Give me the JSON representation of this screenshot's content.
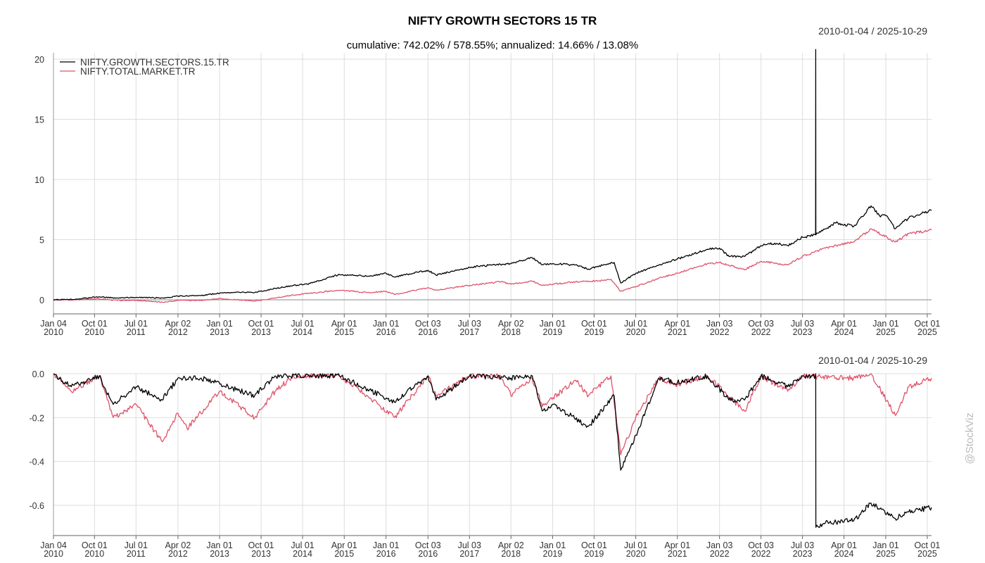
{
  "chart_data": [
    {
      "type": "line",
      "title": "NIFTY GROWTH SECTORS 15 TR",
      "subtitle": "cumulative: 742.02% / 578.55%; annualized: 14.66% / 13.08%",
      "date_range": "2010-01-04 / 2025-10-29",
      "ylim": [
        -0.5,
        21
      ],
      "yticks": [
        "0",
        "5",
        "10",
        "15",
        "20"
      ],
      "grid": true,
      "legend_position": "top-left",
      "x_ticks": [
        {
          "date": "2010-01-04",
          "label": "Jan 04\n2010"
        },
        {
          "date": "2010-10-01",
          "label": "Oct 01\n2010"
        },
        {
          "date": "2011-07-01",
          "label": "Jul 01\n2011"
        },
        {
          "date": "2012-04-02",
          "label": "Apr 02\n2012"
        },
        {
          "date": "2013-01-01",
          "label": "Jan 01\n2013"
        },
        {
          "date": "2013-10-01",
          "label": "Oct 01\n2013"
        },
        {
          "date": "2014-07-01",
          "label": "Jul 01\n2014"
        },
        {
          "date": "2015-04-01",
          "label": "Apr 01\n2015"
        },
        {
          "date": "2016-01-01",
          "label": "Jan 01\n2016"
        },
        {
          "date": "2016-10-03",
          "label": "Oct 03\n2016"
        },
        {
          "date": "2017-07-03",
          "label": "Jul 03\n2017"
        },
        {
          "date": "2018-04-02",
          "label": "Apr 02\n2018"
        },
        {
          "date": "2019-01-01",
          "label": "Jan 01\n2019"
        },
        {
          "date": "2019-10-01",
          "label": "Oct 01\n2019"
        },
        {
          "date": "2020-07-01",
          "label": "Jul 01\n2020"
        },
        {
          "date": "2021-04-01",
          "label": "Apr 01\n2021"
        },
        {
          "date": "2022-01-03",
          "label": "Jan 03\n2022"
        },
        {
          "date": "2022-10-03",
          "label": "Oct 03\n2022"
        },
        {
          "date": "2023-07-03",
          "label": "Jul 03\n2023"
        },
        {
          "date": "2024-04-01",
          "label": "Apr 01\n2024"
        },
        {
          "date": "2025-01-01",
          "label": "Jan 01\n2025"
        },
        {
          "date": "2025-10-01",
          "label": "Oct 01\n2025"
        }
      ],
      "series": [
        {
          "name": "NIFTY.GROWTH.SECTORS.15.TR",
          "color": "#000000",
          "points": [
            [
              "2010-01-04",
              0
            ],
            [
              "2010-06-01",
              0.05
            ],
            [
              "2010-10-15",
              0.25
            ],
            [
              "2011-03-01",
              0.15
            ],
            [
              "2011-07-01",
              0.2
            ],
            [
              "2011-12-20",
              0.15
            ],
            [
              "2012-04-02",
              0.3
            ],
            [
              "2012-09-01",
              0.35
            ],
            [
              "2013-01-01",
              0.55
            ],
            [
              "2013-05-01",
              0.65
            ],
            [
              "2013-08-20",
              0.6
            ],
            [
              "2014-01-01",
              0.95
            ],
            [
              "2014-05-01",
              1.2
            ],
            [
              "2014-08-01",
              1.3
            ],
            [
              "2015-01-01",
              1.9
            ],
            [
              "2015-03-01",
              2.1
            ],
            [
              "2015-09-01",
              1.95
            ],
            [
              "2016-01-01",
              2.2
            ],
            [
              "2016-02-25",
              1.9
            ],
            [
              "2016-08-01",
              2.3
            ],
            [
              "2016-10-03",
              2.45
            ],
            [
              "2016-11-25",
              2.05
            ],
            [
              "2017-03-01",
              2.35
            ],
            [
              "2017-07-03",
              2.7
            ],
            [
              "2017-12-01",
              2.9
            ],
            [
              "2018-04-02",
              3.0
            ],
            [
              "2018-08-20",
              3.5
            ],
            [
              "2018-10-25",
              2.9
            ],
            [
              "2019-01-01",
              3.0
            ],
            [
              "2019-06-01",
              2.9
            ],
            [
              "2019-08-25",
              2.55
            ],
            [
              "2019-12-01",
              2.9
            ],
            [
              "2020-02-10",
              3.1
            ],
            [
              "2020-03-24",
              1.4
            ],
            [
              "2020-07-01",
              2.2
            ],
            [
              "2020-12-01",
              2.9
            ],
            [
              "2021-04-01",
              3.4
            ],
            [
              "2021-10-15",
              4.2
            ],
            [
              "2022-01-03",
              4.3
            ],
            [
              "2022-03-07",
              3.6
            ],
            [
              "2022-06-17",
              3.6
            ],
            [
              "2022-10-03",
              4.5
            ],
            [
              "2023-01-01",
              4.7
            ],
            [
              "2023-03-28",
              4.5
            ],
            [
              "2023-07-03",
              5.2
            ],
            [
              "2023-09-27",
              5.4
            ],
            [
              "2023-09-28",
              20.8
            ],
            [
              "2023-09-29",
              5.4
            ],
            [
              "2023-12-01",
              5.9
            ],
            [
              "2024-02-01",
              6.4
            ],
            [
              "2024-06-04",
              6.1
            ],
            [
              "2024-09-26",
              7.8
            ],
            [
              "2024-11-20",
              7.0
            ],
            [
              "2025-01-01",
              7.0
            ],
            [
              "2025-03-04",
              5.9
            ],
            [
              "2025-06-01",
              6.8
            ],
            [
              "2025-10-29",
              7.42
            ]
          ]
        },
        {
          "name": "NIFTY.TOTAL.MARKET.TR",
          "color": "#DF536B",
          "points": [
            [
              "2010-01-04",
              0
            ],
            [
              "2010-06-01",
              0.0
            ],
            [
              "2010-10-15",
              0.1
            ],
            [
              "2011-03-01",
              -0.05
            ],
            [
              "2011-07-01",
              -0.05
            ],
            [
              "2011-12-20",
              -0.2
            ],
            [
              "2012-04-02",
              -0.05
            ],
            [
              "2012-09-01",
              -0.05
            ],
            [
              "2013-01-01",
              0.1
            ],
            [
              "2013-08-20",
              -0.1
            ],
            [
              "2014-01-01",
              0.15
            ],
            [
              "2014-05-01",
              0.4
            ],
            [
              "2015-03-01",
              0.8
            ],
            [
              "2015-09-01",
              0.6
            ],
            [
              "2016-01-01",
              0.7
            ],
            [
              "2016-02-25",
              0.45
            ],
            [
              "2016-10-03",
              1.0
            ],
            [
              "2016-11-25",
              0.8
            ],
            [
              "2017-07-03",
              1.2
            ],
            [
              "2018-01-25",
              1.5
            ],
            [
              "2018-04-02",
              1.3
            ],
            [
              "2018-08-20",
              1.55
            ],
            [
              "2018-10-25",
              1.2
            ],
            [
              "2019-06-01",
              1.5
            ],
            [
              "2019-12-01",
              1.6
            ],
            [
              "2020-01-20",
              1.7
            ],
            [
              "2020-03-24",
              0.7
            ],
            [
              "2020-07-01",
              1.1
            ],
            [
              "2020-12-01",
              1.8
            ],
            [
              "2021-04-01",
              2.2
            ],
            [
              "2021-10-15",
              3.0
            ],
            [
              "2022-01-03",
              3.1
            ],
            [
              "2022-06-17",
              2.5
            ],
            [
              "2022-10-03",
              3.2
            ],
            [
              "2023-03-28",
              2.9
            ],
            [
              "2023-07-03",
              3.6
            ],
            [
              "2023-12-01",
              4.3
            ],
            [
              "2024-06-04",
              4.8
            ],
            [
              "2024-09-26",
              5.9
            ],
            [
              "2025-03-04",
              4.8
            ],
            [
              "2025-06-01",
              5.5
            ],
            [
              "2025-10-29",
              5.79
            ]
          ]
        }
      ]
    },
    {
      "type": "line",
      "date_range": "2010-01-04 / 2025-10-29",
      "ylim": [
        -0.72,
        0.01
      ],
      "yticks": [
        "0.0",
        "-0.2",
        "-0.4",
        "-0.6"
      ],
      "grid": true,
      "series": [
        {
          "name": "NIFTY.GROWTH.SECTORS.15.TR",
          "color": "#000000",
          "points": [
            [
              "2010-01-04",
              0
            ],
            [
              "2010-05-01",
              -0.06
            ],
            [
              "2010-11-01",
              -0.01
            ],
            [
              "2011-02-01",
              -0.14
            ],
            [
              "2011-07-01",
              -0.06
            ],
            [
              "2011-12-20",
              -0.12
            ],
            [
              "2012-04-02",
              -0.02
            ],
            [
              "2012-09-01",
              -0.02
            ],
            [
              "2013-08-20",
              -0.1
            ],
            [
              "2014-01-01",
              -0.01
            ],
            [
              "2015-03-01",
              -0.01
            ],
            [
              "2015-09-01",
              -0.07
            ],
            [
              "2016-02-25",
              -0.13
            ],
            [
              "2016-10-03",
              -0.01
            ],
            [
              "2016-11-25",
              -0.12
            ],
            [
              "2017-07-03",
              -0.01
            ],
            [
              "2018-04-02",
              -0.02
            ],
            [
              "2018-08-20",
              -0.01
            ],
            [
              "2018-10-25",
              -0.17
            ],
            [
              "2019-01-01",
              -0.14
            ],
            [
              "2019-08-25",
              -0.24
            ],
            [
              "2020-02-10",
              -0.1
            ],
            [
              "2020-03-24",
              -0.44
            ],
            [
              "2020-07-01",
              -0.28
            ],
            [
              "2020-12-01",
              -0.02
            ],
            [
              "2021-04-01",
              -0.04
            ],
            [
              "2021-10-15",
              -0.01
            ],
            [
              "2022-03-07",
              -0.12
            ],
            [
              "2022-06-17",
              -0.12
            ],
            [
              "2022-10-03",
              -0.01
            ],
            [
              "2023-03-28",
              -0.06
            ],
            [
              "2023-07-03",
              -0.01
            ],
            [
              "2023-09-27",
              -0.01
            ],
            [
              "2023-09-28",
              0
            ],
            [
              "2023-09-29",
              -0.7
            ],
            [
              "2023-12-01",
              -0.68
            ],
            [
              "2024-06-04",
              -0.67
            ],
            [
              "2024-09-26",
              -0.59
            ],
            [
              "2025-03-04",
              -0.66
            ],
            [
              "2025-06-01",
              -0.63
            ],
            [
              "2025-10-29",
              -0.61
            ]
          ]
        },
        {
          "name": "NIFTY.TOTAL.MARKET.TR",
          "color": "#DF536B",
          "points": [
            [
              "2010-01-04",
              0
            ],
            [
              "2010-05-01",
              -0.08
            ],
            [
              "2010-11-01",
              -0.01
            ],
            [
              "2011-02-01",
              -0.2
            ],
            [
              "2011-07-01",
              -0.14
            ],
            [
              "2011-12-20",
              -0.31
            ],
            [
              "2012-04-02",
              -0.18
            ],
            [
              "2012-06-01",
              -0.25
            ],
            [
              "2013-01-01",
              -0.08
            ],
            [
              "2013-08-20",
              -0.2
            ],
            [
              "2014-01-01",
              -0.08
            ],
            [
              "2014-05-01",
              -0.01
            ],
            [
              "2015-03-01",
              -0.01
            ],
            [
              "2015-09-01",
              -0.1
            ],
            [
              "2016-02-25",
              -0.2
            ],
            [
              "2016-10-03",
              -0.01
            ],
            [
              "2016-11-25",
              -0.1
            ],
            [
              "2017-07-03",
              -0.01
            ],
            [
              "2018-01-25",
              -0.01
            ],
            [
              "2018-04-02",
              -0.1
            ],
            [
              "2018-08-20",
              -0.02
            ],
            [
              "2018-10-25",
              -0.15
            ],
            [
              "2019-06-01",
              -0.03
            ],
            [
              "2019-08-25",
              -0.1
            ],
            [
              "2020-01-20",
              -0.01
            ],
            [
              "2020-03-24",
              -0.37
            ],
            [
              "2020-07-01",
              -0.2
            ],
            [
              "2020-12-01",
              -0.02
            ],
            [
              "2021-04-01",
              -0.05
            ],
            [
              "2021-10-15",
              -0.01
            ],
            [
              "2022-06-17",
              -0.17
            ],
            [
              "2022-10-03",
              -0.01
            ],
            [
              "2023-03-28",
              -0.08
            ],
            [
              "2023-07-03",
              -0.01
            ],
            [
              "2024-06-04",
              -0.02
            ],
            [
              "2024-09-26",
              0
            ],
            [
              "2025-03-04",
              -0.19
            ],
            [
              "2025-06-01",
              -0.06
            ],
            [
              "2025-10-29",
              -0.02
            ]
          ]
        }
      ]
    }
  ],
  "watermark": "@StockViz"
}
